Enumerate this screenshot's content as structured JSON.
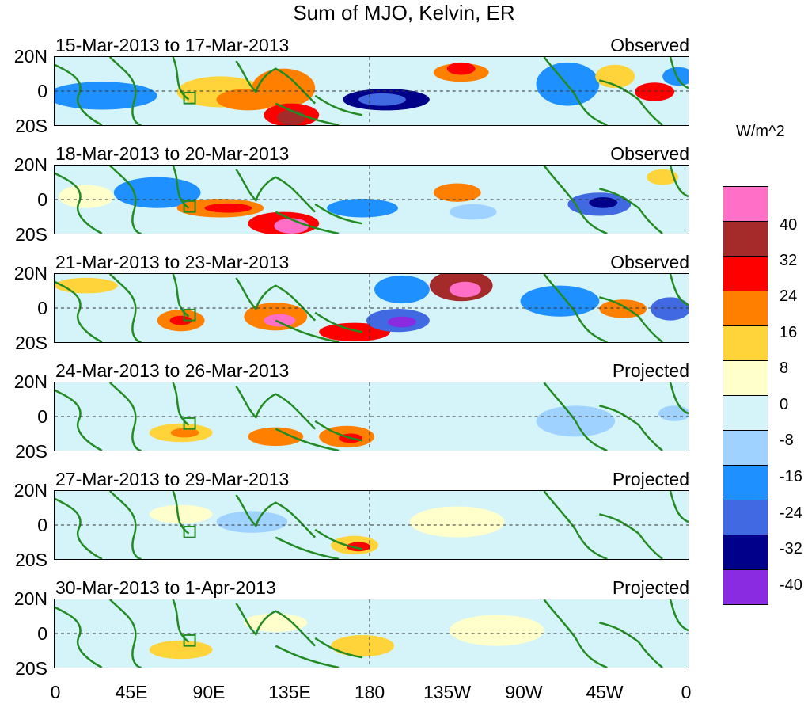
{
  "title": "Sum of MJO, Kelvin, ER",
  "units": "W/m^2",
  "lat_labels": [
    "20N",
    "0",
    "20S"
  ],
  "lon_labels": [
    "0",
    "45E",
    "90E",
    "135E",
    "180",
    "135W",
    "90W",
    "45W",
    "0"
  ],
  "panels": [
    {
      "dates": "15-Mar-2013 to 17-Mar-2013",
      "status": "Observed"
    },
    {
      "dates": "18-Mar-2013 to 20-Mar-2013",
      "status": "Observed"
    },
    {
      "dates": "21-Mar-2013 to 23-Mar-2013",
      "status": "Observed"
    },
    {
      "dates": "24-Mar-2013 to 26-Mar-2013",
      "status": "Projected"
    },
    {
      "dates": "27-Mar-2013 to 29-Mar-2013",
      "status": "Projected"
    },
    {
      "dates": "30-Mar-2013 to 1-Apr-2013",
      "status": "Projected"
    }
  ],
  "colorbar": {
    "colors": [
      "#ff6ec7",
      "#a52a2a",
      "#ff0000",
      "#ff7f00",
      "#ffd33a",
      "#ffffcc",
      "#d4f4fa",
      "#a0d2ff",
      "#1e90ff",
      "#4169e1",
      "#00008b",
      "#8a2be2"
    ],
    "ticks": [
      "40",
      "32",
      "24",
      "16",
      "8",
      "0",
      "-8",
      "-16",
      "-24",
      "-32",
      "-40"
    ]
  },
  "colors": {
    "coastline": "#228b22",
    "background_anomaly": "#d4f4fa"
  }
}
